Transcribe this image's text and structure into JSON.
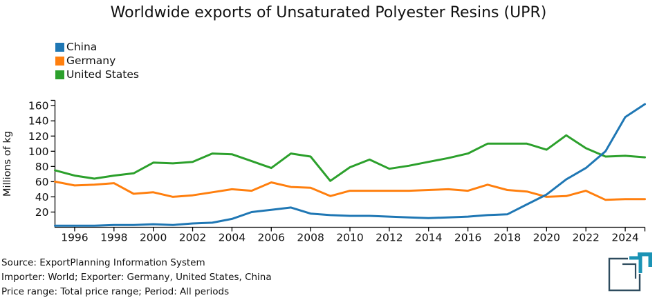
{
  "title": "Worldwide exports of Unsaturated Polyester Resins (UPR)",
  "chart_data": {
    "type": "line",
    "title": "Worldwide exports of Unsaturated Polyester Resins (UPR)",
    "xlabel": "",
    "ylabel": "Millions of kg",
    "xlim": [
      1995,
      2025
    ],
    "ylim": [
      0,
      167
    ],
    "grid": false,
    "legend_position": "upper-left",
    "xticks": [
      1996,
      1998,
      2000,
      2002,
      2004,
      2006,
      2008,
      2010,
      2012,
      2014,
      2016,
      2018,
      2020,
      2022,
      2024
    ],
    "yticks": [
      20,
      40,
      60,
      80,
      100,
      120,
      140,
      160
    ],
    "x": [
      1995,
      1996,
      1997,
      1998,
      1999,
      2000,
      2001,
      2002,
      2003,
      2004,
      2005,
      2006,
      2007,
      2008,
      2009,
      2010,
      2011,
      2012,
      2013,
      2014,
      2015,
      2016,
      2017,
      2018,
      2019,
      2020,
      2021,
      2022,
      2023,
      2024,
      2025
    ],
    "series": [
      {
        "name": "China",
        "color": "#1f77b4",
        "values": [
          2,
          2,
          2,
          3,
          3,
          4,
          3,
          5,
          6,
          11,
          20,
          23,
          26,
          18,
          16,
          15,
          15,
          14,
          13,
          12,
          13,
          14,
          16,
          17,
          30,
          43,
          63,
          78,
          100,
          145,
          162
        ]
      },
      {
        "name": "Germany",
        "color": "#ff7f0e",
        "values": [
          60,
          55,
          56,
          58,
          44,
          46,
          40,
          42,
          46,
          50,
          48,
          59,
          53,
          52,
          41,
          48,
          48,
          48,
          48,
          49,
          50,
          48,
          56,
          49,
          47,
          40,
          41,
          48,
          36,
          37,
          37
        ]
      },
      {
        "name": "United States",
        "color": "#2ca02c",
        "values": [
          75,
          68,
          64,
          68,
          71,
          85,
          84,
          86,
          97,
          96,
          87,
          78,
          97,
          93,
          61,
          79,
          89,
          77,
          81,
          86,
          91,
          97,
          110,
          110,
          110,
          102,
          121,
          104,
          93,
          94,
          92
        ]
      }
    ]
  },
  "footer": {
    "source": "Source: ExportPlanning Information System",
    "importer": "Importer: World; Exporter: Germany, United States, China",
    "price_range": "Price range: Total price range; Period: All periods"
  },
  "logo": {
    "name": "exportplanning-logo",
    "dark_color": "#2d4b5e",
    "teal_color": "#1b93b5"
  }
}
